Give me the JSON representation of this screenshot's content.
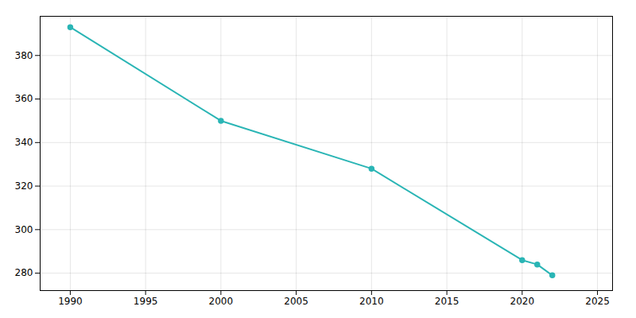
{
  "chart_data": {
    "type": "line",
    "x": [
      1990,
      2000,
      2010,
      2020,
      2021,
      2022
    ],
    "values": [
      393,
      350,
      328,
      286,
      284,
      279
    ],
    "color": "#2ab5b5",
    "marker": "circle",
    "xlim": [
      1988,
      2026
    ],
    "ylim": [
      272,
      398
    ],
    "xticks": [
      1990,
      1995,
      2000,
      2005,
      2010,
      2015,
      2020,
      2025
    ],
    "yticks": [
      280,
      300,
      320,
      340,
      360,
      380
    ],
    "grid": true
  }
}
